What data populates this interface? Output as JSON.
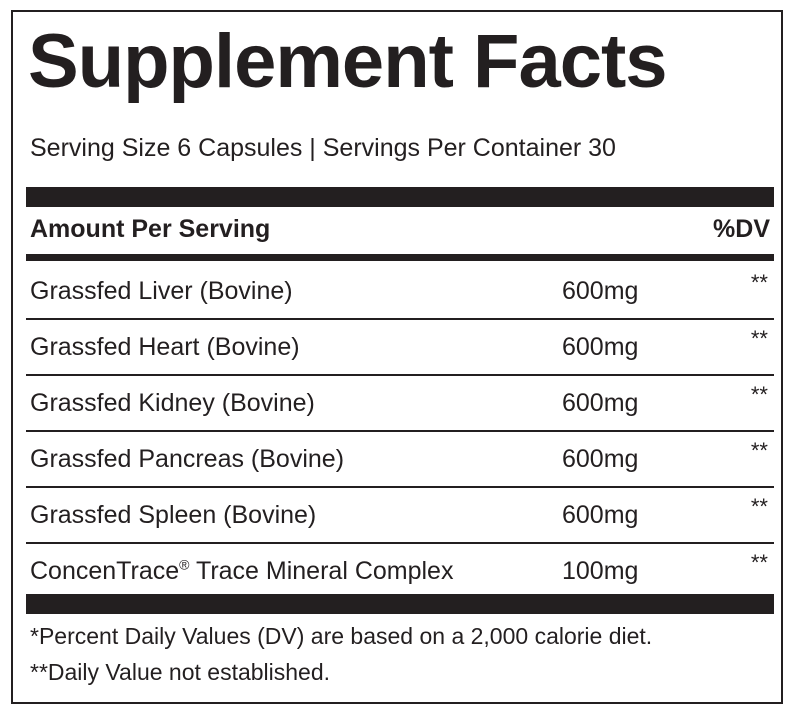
{
  "panel": {
    "title": "Supplement Facts",
    "serving_line": "Serving Size 6 Capsules | Servings Per Container 30"
  },
  "table": {
    "header_left": "Amount Per Serving",
    "header_right": "%DV",
    "rows": [
      {
        "name": "Grassfed Liver (Bovine)",
        "amount": "600mg",
        "dv": "**"
      },
      {
        "name": "Grassfed Heart (Bovine)",
        "amount": "600mg",
        "dv": "**"
      },
      {
        "name": "Grassfed Kidney (Bovine)",
        "amount": "600mg",
        "dv": "**"
      },
      {
        "name": "Grassfed Pancreas (Bovine)",
        "amount": "600mg",
        "dv": "**"
      },
      {
        "name": "Grassfed Spleen (Bovine)",
        "amount": "600mg",
        "dv": "**"
      },
      {
        "name": "ConcenTrace",
        "name_mark": "®",
        "name_suffix": " Trace Mineral Complex",
        "amount": "100mg",
        "dv": "**"
      }
    ]
  },
  "footnotes": {
    "line1": "*Percent Daily Values (DV) are based on a 2,000 calorie diet.",
    "line2": "**Daily Value not established."
  },
  "colors": {
    "ink": "#231f20",
    "background": "#ffffff"
  }
}
